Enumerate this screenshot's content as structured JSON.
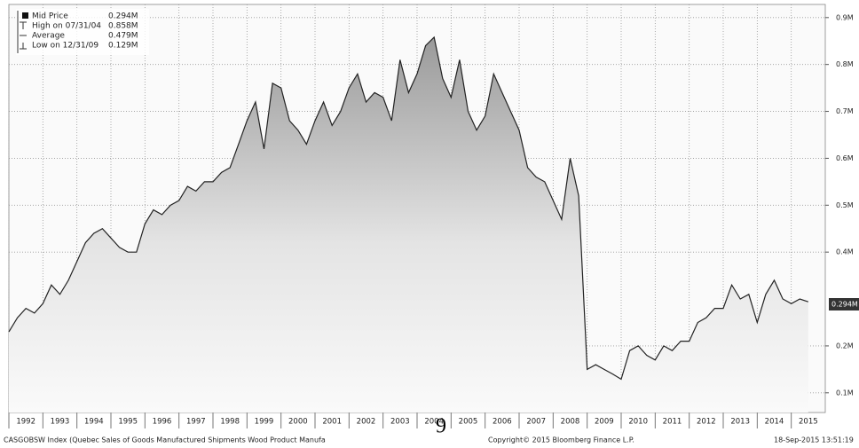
{
  "chart_data": {
    "type": "area",
    "color": "#222222",
    "x": [
      1992,
      1992.25,
      1992.5,
      1992.75,
      1993,
      1993.25,
      1993.5,
      1993.75,
      1994,
      1994.25,
      1994.5,
      1994.75,
      1995,
      1995.25,
      1995.5,
      1995.75,
      1996,
      1996.25,
      1996.5,
      1996.75,
      1997,
      1997.25,
      1997.5,
      1997.75,
      1998,
      1998.25,
      1998.5,
      1998.75,
      1999,
      1999.25,
      1999.5,
      1999.75,
      2000,
      2000.25,
      2000.5,
      2000.75,
      2001,
      2001.25,
      2001.5,
      2001.75,
      2002,
      2002.25,
      2002.5,
      2002.75,
      2003,
      2003.25,
      2003.5,
      2003.75,
      2004,
      2004.25,
      2004.5,
      2004.75,
      2005,
      2005.25,
      2005.5,
      2005.75,
      2006,
      2006.25,
      2006.5,
      2006.75,
      2007,
      2007.25,
      2007.5,
      2007.75,
      2008,
      2008.25,
      2008.5,
      2008.75,
      2009,
      2009.25,
      2009.5,
      2009.75,
      2010,
      2010.25,
      2010.5,
      2010.75,
      2011,
      2011.25,
      2011.5,
      2011.75,
      2012,
      2012.25,
      2012.5,
      2012.75,
      2013,
      2013.25,
      2013.5,
      2013.75,
      2014,
      2014.25,
      2014.5,
      2014.75,
      2015,
      2015.25,
      2015.5
    ],
    "values": [
      0.23,
      0.26,
      0.28,
      0.27,
      0.29,
      0.33,
      0.31,
      0.34,
      0.38,
      0.42,
      0.44,
      0.45,
      0.43,
      0.41,
      0.4,
      0.4,
      0.46,
      0.49,
      0.48,
      0.5,
      0.51,
      0.54,
      0.53,
      0.55,
      0.55,
      0.57,
      0.58,
      0.63,
      0.68,
      0.72,
      0.62,
      0.76,
      0.75,
      0.68,
      0.66,
      0.63,
      0.68,
      0.72,
      0.67,
      0.7,
      0.75,
      0.78,
      0.72,
      0.74,
      0.73,
      0.68,
      0.81,
      0.74,
      0.78,
      0.84,
      0.858,
      0.77,
      0.73,
      0.81,
      0.7,
      0.66,
      0.69,
      0.78,
      0.74,
      0.7,
      0.66,
      0.58,
      0.56,
      0.55,
      0.51,
      0.47,
      0.6,
      0.52,
      0.15,
      0.16,
      0.15,
      0.14,
      0.129,
      0.19,
      0.2,
      0.18,
      0.17,
      0.2,
      0.19,
      0.21,
      0.21,
      0.25,
      0.26,
      0.28,
      0.28,
      0.33,
      0.3,
      0.31,
      0.25,
      0.31,
      0.34,
      0.3,
      0.29,
      0.3,
      0.294
    ],
    "xlim": [
      1992,
      2016
    ],
    "xticks": [
      {
        "value": 1992,
        "label": "1992"
      },
      {
        "value": 1993,
        "label": "1993"
      },
      {
        "value": 1994,
        "label": "1994"
      },
      {
        "value": 1995,
        "label": "1995"
      },
      {
        "value": 1996,
        "label": "1996"
      },
      {
        "value": 1997,
        "label": "1997"
      },
      {
        "value": 1998,
        "label": "1998"
      },
      {
        "value": 1999,
        "label": "1999"
      },
      {
        "value": 2000,
        "label": "2000"
      },
      {
        "value": 2001,
        "label": "2001"
      },
      {
        "value": 2002,
        "label": "2002"
      },
      {
        "value": 2003,
        "label": "2003"
      },
      {
        "value": 2004,
        "label": "2004"
      },
      {
        "value": 2005,
        "label": "2005"
      },
      {
        "value": 2006,
        "label": "2006"
      },
      {
        "value": 2007,
        "label": "2007"
      },
      {
        "value": 2008,
        "label": "2008"
      },
      {
        "value": 2009,
        "label": "2009"
      },
      {
        "value": 2010,
        "label": "2010"
      },
      {
        "value": 2011,
        "label": "2011"
      },
      {
        "value": 2012,
        "label": "2012"
      },
      {
        "value": 2013,
        "label": "2013"
      },
      {
        "value": 2014,
        "label": "2014"
      },
      {
        "value": 2015,
        "label": "2015"
      }
    ],
    "ylim": [
      0.058,
      0.928
    ],
    "yticks": [
      {
        "value": 0.1,
        "label": "0.1M"
      },
      {
        "value": 0.2,
        "label": "0.2M"
      },
      {
        "value": 0.4,
        "label": "0.4M"
      },
      {
        "value": 0.5,
        "label": "0.5M"
      },
      {
        "value": 0.6,
        "label": "0.6M"
      },
      {
        "value": 0.7,
        "label": "0.7M"
      },
      {
        "value": 0.8,
        "label": "0.8M"
      },
      {
        "value": 0.9,
        "label": "0.9M"
      }
    ],
    "grid": true,
    "legend": [
      {
        "label": "Mid Price",
        "value_label": "0.294M"
      },
      {
        "label": "High on 07/31/04",
        "value_label": "0.858M"
      },
      {
        "label": "Average",
        "value_label": "0.479M"
      },
      {
        "label": "Low on 12/31/09",
        "value_label": "0.129M"
      }
    ],
    "footer_left": "CASGOBSW Index (Quebec Sales of Goods Manufactured Shipments Wood Product Manufa",
    "footer_center": "Copyright© 2015 Bloomberg Finance L.P.",
    "footer_right": "18-Sep-2015 13:51:19",
    "page_number": "9"
  }
}
